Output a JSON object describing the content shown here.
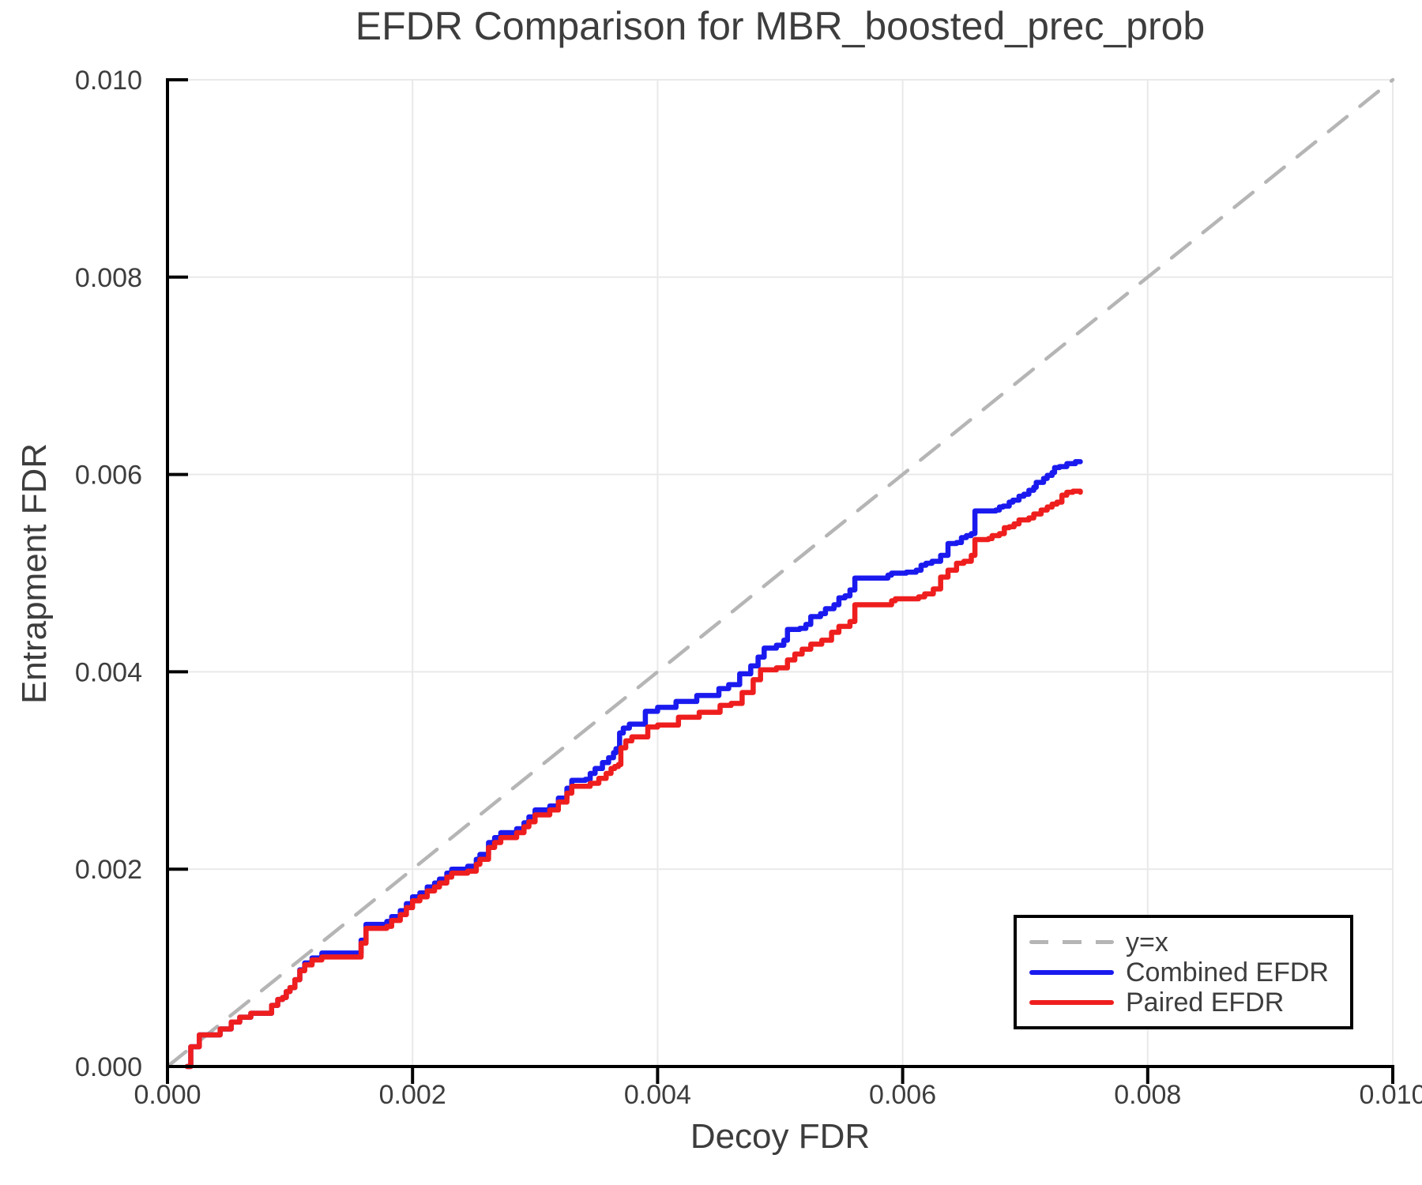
{
  "chart_data": {
    "type": "line",
    "title": "EFDR Comparison for MBR_boosted_prec_prob",
    "xlabel": "Decoy FDR",
    "ylabel": "Entrapment FDR",
    "xlim": [
      0,
      0.01
    ],
    "ylim": [
      0,
      0.01
    ],
    "grid": true,
    "xticks": {
      "values": [
        0,
        0.002,
        0.004,
        0.006,
        0.008,
        0.01
      ],
      "labels": [
        "0.000",
        "0.002",
        "0.004",
        "0.006",
        "0.008",
        "0.010"
      ]
    },
    "yticks": {
      "values": [
        0,
        0.002,
        0.004,
        0.006,
        0.008,
        0.01
      ],
      "labels": [
        "0.000",
        "0.002",
        "0.004",
        "0.006",
        "0.008",
        "0.010"
      ]
    },
    "colors": {
      "grid": "#e9e9e9",
      "spine": "#000000",
      "text": "#3d3d3d",
      "identity": "#b5b5b5",
      "combined": "#1a1aef",
      "paired": "#ef1e1e"
    },
    "legend": {
      "position": "lower-right",
      "entries": [
        {
          "label": "y=x",
          "series": "identity",
          "dash": true
        },
        {
          "label": "Combined EFDR",
          "series": "combined",
          "dash": false
        },
        {
          "label": "Paired EFDR",
          "series": "paired",
          "dash": false
        }
      ]
    },
    "series": [
      {
        "name": "y=x",
        "key": "identity",
        "style": "dashed",
        "step": false,
        "width": 4.5,
        "points": [
          [
            0,
            0
          ],
          [
            0.01,
            0.01
          ]
        ]
      },
      {
        "name": "Combined EFDR",
        "key": "combined",
        "style": "solid",
        "step": true,
        "width": 6.5,
        "points": [
          [
            0.00016,
            0
          ],
          [
            0.00019,
            0.0002
          ],
          [
            0.00024,
            0.0002
          ],
          [
            0.00026,
            0.00032
          ],
          [
            0.00041,
            0.00032
          ],
          [
            0.00043,
            0.00038
          ],
          [
            0.00049,
            0.00038
          ],
          [
            0.00052,
            0.00045
          ],
          [
            0.00057,
            0.00045
          ],
          [
            0.00059,
            0.0005
          ],
          [
            0.00066,
            0.0005
          ],
          [
            0.00068,
            0.00054
          ],
          [
            0.00081,
            0.00054
          ],
          [
            0.00085,
            0.00062
          ],
          [
            0.0009,
            0.00068
          ],
          [
            0.00094,
            0.0007
          ],
          [
            0.00097,
            0.00076
          ],
          [
            0.001,
            0.0008
          ],
          [
            0.00104,
            0.00088
          ],
          [
            0.00108,
            0.00098
          ],
          [
            0.00112,
            0.00105
          ],
          [
            0.00118,
            0.0011
          ],
          [
            0.00126,
            0.00115
          ],
          [
            0.00155,
            0.00115
          ],
          [
            0.00158,
            0.00128
          ],
          [
            0.00162,
            0.00144
          ],
          [
            0.00179,
            0.00147
          ],
          [
            0.00183,
            0.00152
          ],
          [
            0.0019,
            0.00158
          ],
          [
            0.00195,
            0.00165
          ],
          [
            0.002,
            0.00172
          ],
          [
            0.00206,
            0.00176
          ],
          [
            0.00212,
            0.00182
          ],
          [
            0.00218,
            0.00186
          ],
          [
            0.00222,
            0.0019
          ],
          [
            0.00228,
            0.00196
          ],
          [
            0.00232,
            0.002
          ],
          [
            0.00245,
            0.00203
          ],
          [
            0.00252,
            0.0021
          ],
          [
            0.00255,
            0.00215
          ],
          [
            0.00262,
            0.00227
          ],
          [
            0.00267,
            0.00232
          ],
          [
            0.00272,
            0.00237
          ],
          [
            0.00285,
            0.00241
          ],
          [
            0.00291,
            0.00247
          ],
          [
            0.00295,
            0.00253
          ],
          [
            0.003,
            0.0026
          ],
          [
            0.00312,
            0.00264
          ],
          [
            0.00319,
            0.00272
          ],
          [
            0.00326,
            0.00282
          ],
          [
            0.0033,
            0.0029
          ],
          [
            0.00341,
            0.00291
          ],
          [
            0.00345,
            0.00297
          ],
          [
            0.00349,
            0.00302
          ],
          [
            0.00355,
            0.00308
          ],
          [
            0.0036,
            0.00313
          ],
          [
            0.00364,
            0.00318
          ],
          [
            0.00366,
            0.00322
          ],
          [
            0.00369,
            0.00338
          ],
          [
            0.00372,
            0.00343
          ],
          [
            0.00377,
            0.00347
          ],
          [
            0.0039,
            0.0036
          ],
          [
            0.004,
            0.00364
          ],
          [
            0.00415,
            0.0037
          ],
          [
            0.00432,
            0.00376
          ],
          [
            0.0045,
            0.00383
          ],
          [
            0.00458,
            0.00387
          ],
          [
            0.00467,
            0.00398
          ],
          [
            0.00476,
            0.00406
          ],
          [
            0.00482,
            0.00415
          ],
          [
            0.00487,
            0.00424
          ],
          [
            0.00497,
            0.00427
          ],
          [
            0.00503,
            0.00432
          ],
          [
            0.00506,
            0.00443
          ],
          [
            0.00516,
            0.00444
          ],
          [
            0.00521,
            0.00448
          ],
          [
            0.00525,
            0.00456
          ],
          [
            0.00533,
            0.00459
          ],
          [
            0.00537,
            0.00464
          ],
          [
            0.00544,
            0.00468
          ],
          [
            0.00548,
            0.00475
          ],
          [
            0.00553,
            0.00477
          ],
          [
            0.00557,
            0.00483
          ],
          [
            0.00561,
            0.00495
          ],
          [
            0.00584,
            0.00495
          ],
          [
            0.00588,
            0.00498
          ],
          [
            0.00591,
            0.005
          ],
          [
            0.00603,
            0.00501
          ],
          [
            0.00611,
            0.00503
          ],
          [
            0.00615,
            0.00508
          ],
          [
            0.00619,
            0.0051
          ],
          [
            0.00624,
            0.00512
          ],
          [
            0.00631,
            0.00518
          ],
          [
            0.00637,
            0.0053
          ],
          [
            0.00644,
            0.00531
          ],
          [
            0.00648,
            0.00536
          ],
          [
            0.00652,
            0.00538
          ],
          [
            0.00656,
            0.0054
          ],
          [
            0.00659,
            0.00563
          ],
          [
            0.00676,
            0.00564
          ],
          [
            0.00679,
            0.00567
          ],
          [
            0.00682,
            0.00568
          ],
          [
            0.00687,
            0.00572
          ],
          [
            0.0069,
            0.00574
          ],
          [
            0.00695,
            0.00578
          ],
          [
            0.00699,
            0.0058
          ],
          [
            0.00703,
            0.00584
          ],
          [
            0.00707,
            0.00587
          ],
          [
            0.00709,
            0.00592
          ],
          [
            0.00715,
            0.00596
          ],
          [
            0.00718,
            0.00599
          ],
          [
            0.00722,
            0.00602
          ],
          [
            0.00724,
            0.00607
          ],
          [
            0.00728,
            0.00608
          ],
          [
            0.00734,
            0.00611
          ],
          [
            0.00741,
            0.00613
          ],
          [
            0.00745,
            0.00613
          ]
        ]
      },
      {
        "name": "Paired EFDR",
        "key": "paired",
        "style": "solid",
        "step": true,
        "width": 6.5,
        "points": [
          [
            0.00016,
            0
          ],
          [
            0.00019,
            0.0002
          ],
          [
            0.00024,
            0.0002
          ],
          [
            0.00026,
            0.00032
          ],
          [
            0.00041,
            0.00032
          ],
          [
            0.00043,
            0.00038
          ],
          [
            0.00049,
            0.00038
          ],
          [
            0.00052,
            0.00045
          ],
          [
            0.00057,
            0.00045
          ],
          [
            0.00059,
            0.0005
          ],
          [
            0.00066,
            0.0005
          ],
          [
            0.00068,
            0.00054
          ],
          [
            0.00081,
            0.00054
          ],
          [
            0.00085,
            0.00062
          ],
          [
            0.0009,
            0.00068
          ],
          [
            0.00094,
            0.0007
          ],
          [
            0.00097,
            0.00076
          ],
          [
            0.001,
            0.0008
          ],
          [
            0.00104,
            0.00088
          ],
          [
            0.00108,
            0.00097
          ],
          [
            0.00112,
            0.00103
          ],
          [
            0.00118,
            0.00108
          ],
          [
            0.00126,
            0.00111
          ],
          [
            0.00155,
            0.00111
          ],
          [
            0.00158,
            0.00125
          ],
          [
            0.00162,
            0.0014
          ],
          [
            0.00179,
            0.00142
          ],
          [
            0.00183,
            0.00148
          ],
          [
            0.0019,
            0.00154
          ],
          [
            0.00195,
            0.00161
          ],
          [
            0.002,
            0.00168
          ],
          [
            0.00206,
            0.00172
          ],
          [
            0.00212,
            0.00178
          ],
          [
            0.00218,
            0.00182
          ],
          [
            0.00222,
            0.00186
          ],
          [
            0.00228,
            0.00192
          ],
          [
            0.00232,
            0.00196
          ],
          [
            0.00245,
            0.00198
          ],
          [
            0.00252,
            0.00205
          ],
          [
            0.00255,
            0.0021
          ],
          [
            0.00262,
            0.00222
          ],
          [
            0.00267,
            0.00227
          ],
          [
            0.00272,
            0.00232
          ],
          [
            0.00285,
            0.00237
          ],
          [
            0.00291,
            0.00243
          ],
          [
            0.00295,
            0.00248
          ],
          [
            0.003,
            0.00255
          ],
          [
            0.00312,
            0.0026
          ],
          [
            0.00319,
            0.00268
          ],
          [
            0.00326,
            0.00277
          ],
          [
            0.0033,
            0.00284
          ],
          [
            0.00345,
            0.00287
          ],
          [
            0.00352,
            0.00292
          ],
          [
            0.00358,
            0.00297
          ],
          [
            0.00362,
            0.00302
          ],
          [
            0.00365,
            0.00304
          ],
          [
            0.00368,
            0.00306
          ],
          [
            0.0037,
            0.00323
          ],
          [
            0.00374,
            0.0033
          ],
          [
            0.00379,
            0.00334
          ],
          [
            0.00392,
            0.00344
          ],
          [
            0.004,
            0.00346
          ],
          [
            0.00417,
            0.00354
          ],
          [
            0.00434,
            0.00359
          ],
          [
            0.00451,
            0.00366
          ],
          [
            0.0046,
            0.00368
          ],
          [
            0.00469,
            0.00379
          ],
          [
            0.00478,
            0.00392
          ],
          [
            0.00484,
            0.00402
          ],
          [
            0.00497,
            0.00404
          ],
          [
            0.00506,
            0.00412
          ],
          [
            0.00512,
            0.00418
          ],
          [
            0.00518,
            0.00423
          ],
          [
            0.00525,
            0.00428
          ],
          [
            0.00534,
            0.00432
          ],
          [
            0.00542,
            0.0044
          ],
          [
            0.00548,
            0.00446
          ],
          [
            0.00557,
            0.00451
          ],
          [
            0.00561,
            0.00468
          ],
          [
            0.00588,
            0.00468
          ],
          [
            0.00591,
            0.00472
          ],
          [
            0.00594,
            0.00474
          ],
          [
            0.00609,
            0.00474
          ],
          [
            0.00613,
            0.00476
          ],
          [
            0.00618,
            0.00479
          ],
          [
            0.00625,
            0.00484
          ],
          [
            0.00631,
            0.00496
          ],
          [
            0.00637,
            0.00503
          ],
          [
            0.00644,
            0.0051
          ],
          [
            0.0065,
            0.00512
          ],
          [
            0.00656,
            0.00518
          ],
          [
            0.00659,
            0.00534
          ],
          [
            0.0067,
            0.00535
          ],
          [
            0.00673,
            0.00538
          ],
          [
            0.00679,
            0.0054
          ],
          [
            0.00683,
            0.00546
          ],
          [
            0.00687,
            0.00547
          ],
          [
            0.00691,
            0.0055
          ],
          [
            0.00695,
            0.00554
          ],
          [
            0.00703,
            0.00556
          ],
          [
            0.00707,
            0.0056
          ],
          [
            0.00713,
            0.00564
          ],
          [
            0.00718,
            0.00567
          ],
          [
            0.00722,
            0.0057
          ],
          [
            0.00726,
            0.00572
          ],
          [
            0.0073,
            0.00579
          ],
          [
            0.00734,
            0.00582
          ],
          [
            0.00739,
            0.00583
          ],
          [
            0.00745,
            0.00582
          ]
        ]
      }
    ]
  }
}
